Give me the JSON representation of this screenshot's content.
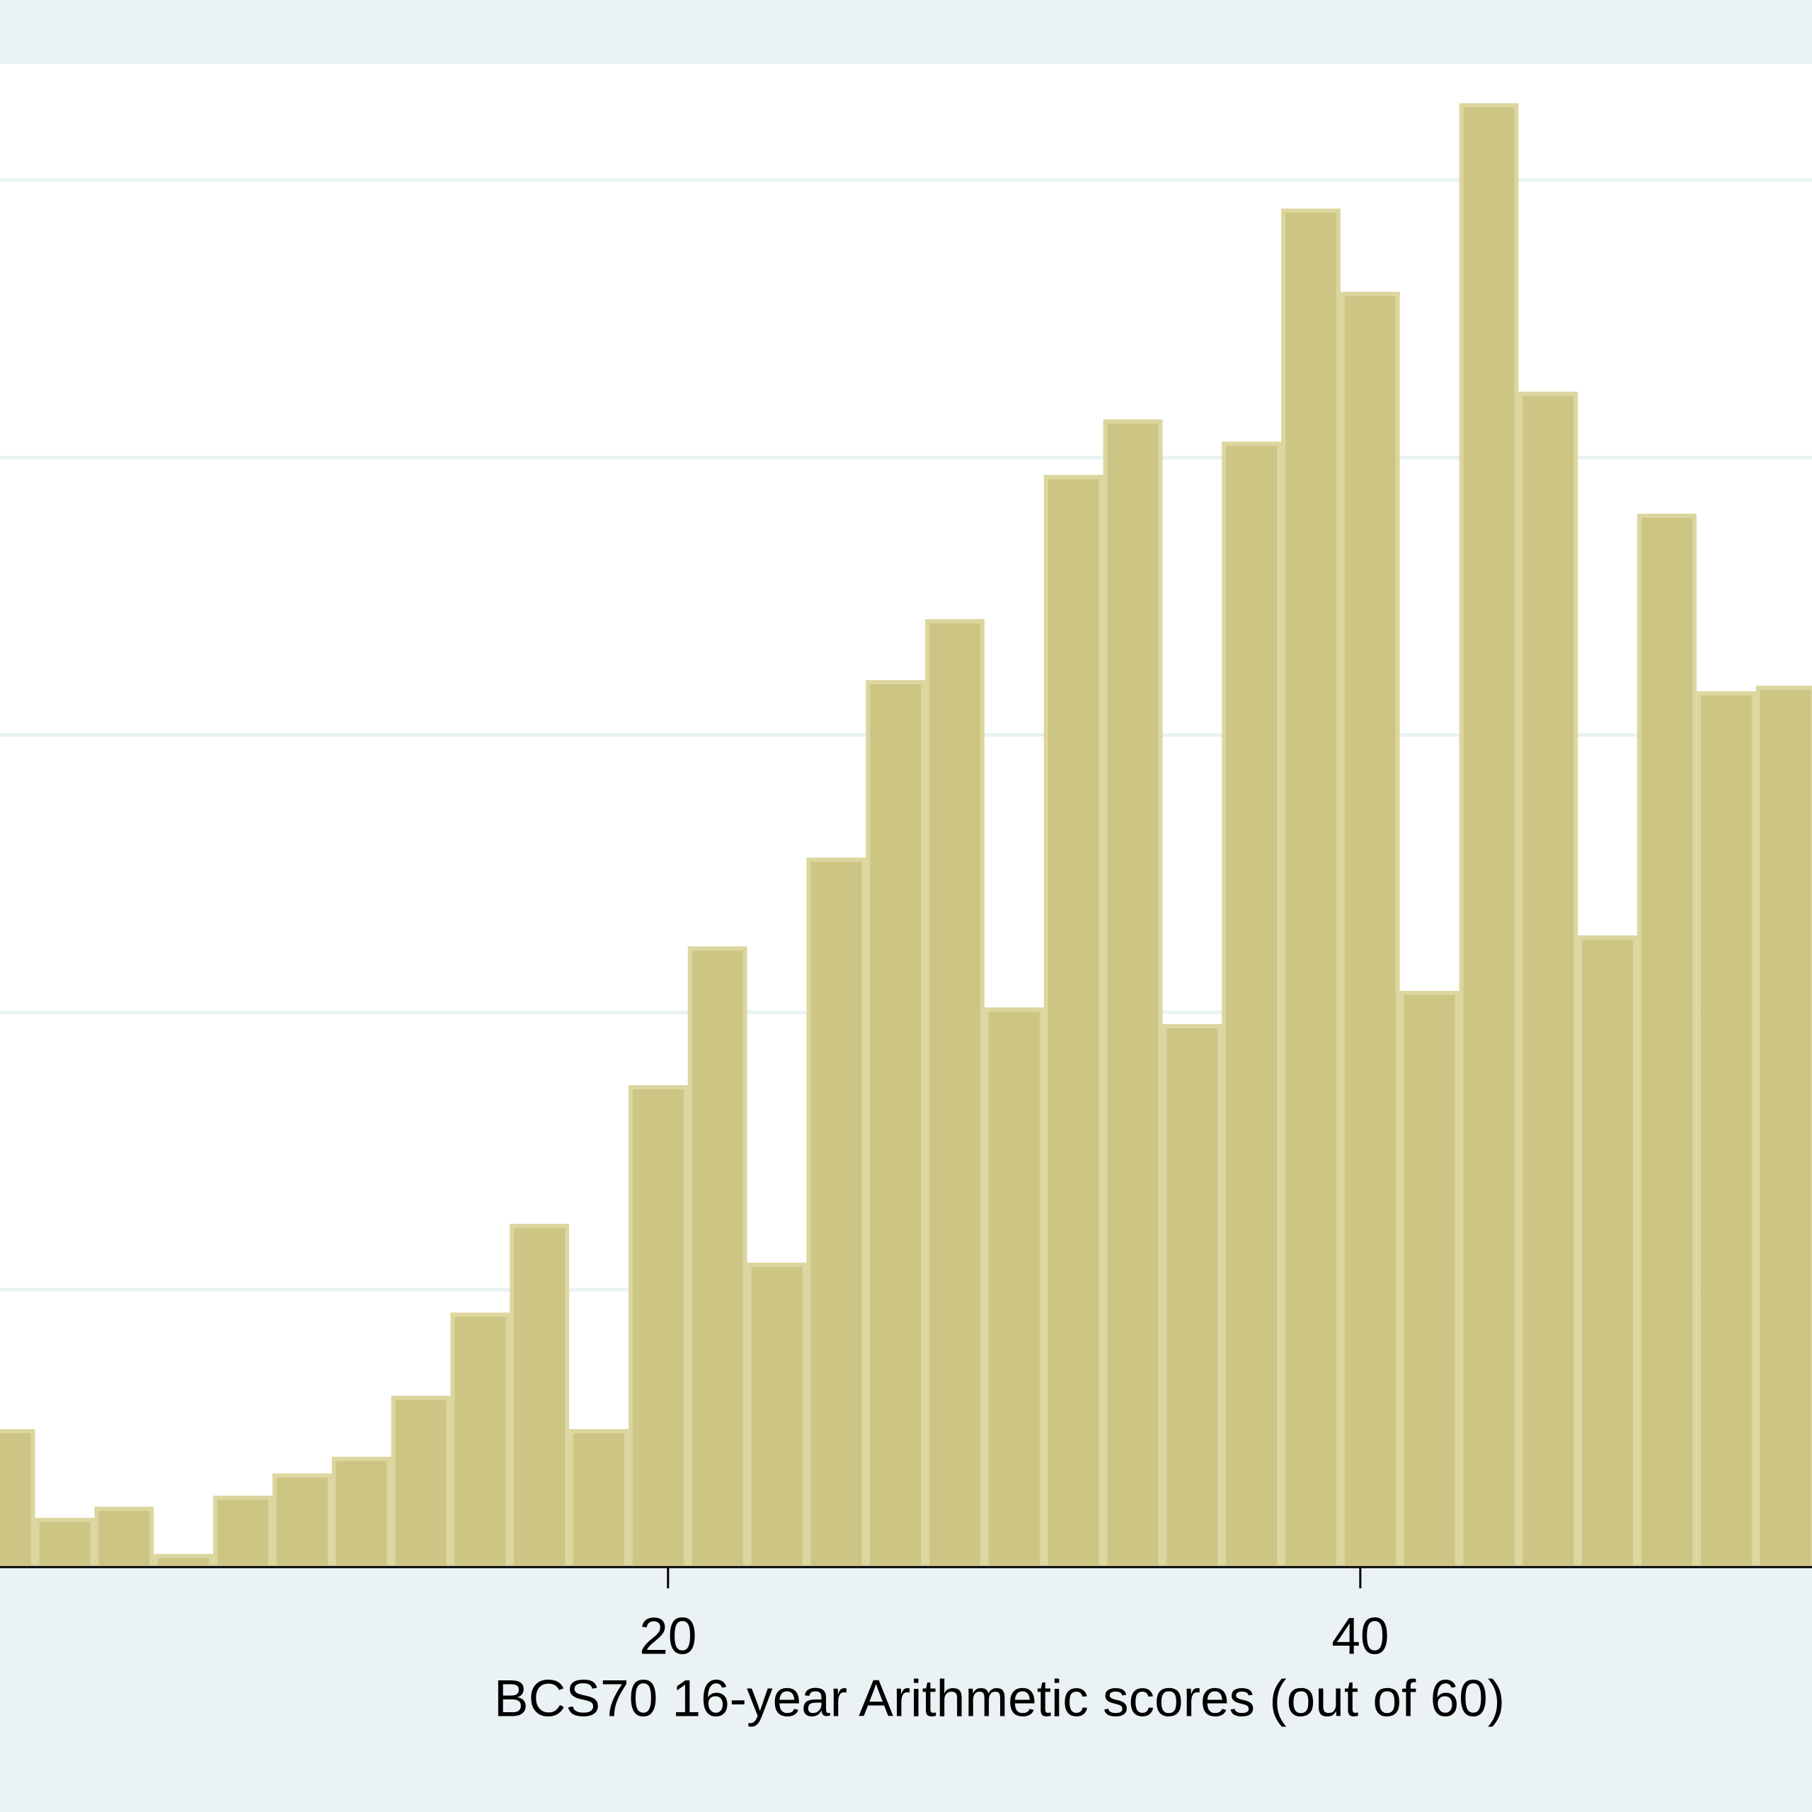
{
  "chart_data": {
    "type": "histogram",
    "x_label": "BCS70 16-year Arithmetic scores (out of 60)",
    "bins": [
      0,
      1.7143,
      3.4286,
      5.1429,
      6.8571,
      8.5714,
      10.2857,
      12,
      13.7143,
      15.4286,
      17.1429,
      18.8571,
      20.5714,
      22.2857,
      24,
      25.7143,
      27.4286,
      29.1429,
      30.8571,
      32.5714,
      34.2857,
      36,
      37.7143,
      39.4286,
      41.1429,
      42.8571,
      44.5714,
      46.2857,
      48,
      49.7143,
      51.4286,
      53.1429
    ],
    "values": [
      0.49,
      0.17,
      0.21,
      0.04,
      0.25,
      0.33,
      0.39,
      0.61,
      0.91,
      1.23,
      0.49,
      1.73,
      2.23,
      1.09,
      2.55,
      3.19,
      3.41,
      2.01,
      3.93,
      4.13,
      1.95,
      4.05,
      4.89,
      4.59,
      2.07,
      5.27,
      4.23,
      2.27,
      3.79,
      3.15,
      3.17
    ],
    "color": "#cdc584",
    "edge_color": "#dcd69f",
    "xlim": [
      0.7,
      53.05
    ],
    "xticks": [
      20,
      40
    ],
    "ylim": [
      0,
      5.42
    ],
    "yticks": [
      0,
      1,
      2,
      3,
      4,
      5
    ],
    "grid": true
  }
}
